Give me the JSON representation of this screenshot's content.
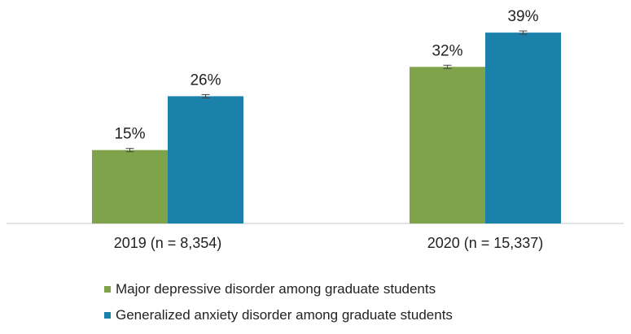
{
  "chart_data": {
    "type": "bar",
    "categories": [
      "2019 (n = 8,354)",
      "2020 (n = 15,337)"
    ],
    "series": [
      {
        "name": "Major depressive disorder among graduate students",
        "values": [
          15,
          32
        ],
        "labels": [
          "15%",
          "32%"
        ],
        "color": "#7ea34a"
      },
      {
        "name": "Generalized anxiety disorder among graduate students",
        "values": [
          26,
          39
        ],
        "labels": [
          "26%",
          "39%"
        ],
        "color": "#1a82aa"
      }
    ],
    "ylim": [
      0,
      44
    ],
    "grid": false,
    "error_bars": true,
    "legend_position": "bottom",
    "title": "",
    "xlabel": "",
    "ylabel": ""
  }
}
